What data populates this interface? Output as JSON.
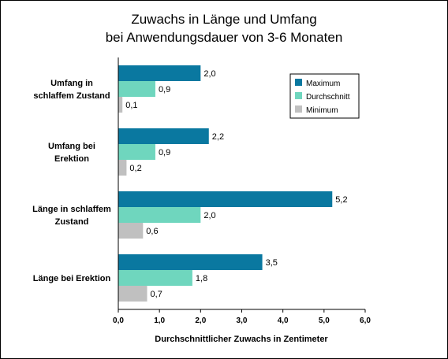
{
  "chart_data": {
    "type": "bar",
    "orientation": "horizontal",
    "title": [
      "Zuwachs in Länge und Umfang",
      "bei Anwendungsdauer von 3-6 Monaten"
    ],
    "xlabel": "Durchschnittlicher Zuwachs in Zentimeter",
    "ylabel": "",
    "xlim": [
      0,
      6
    ],
    "x_ticks": [
      "0,0",
      "1,0",
      "2,0",
      "3,0",
      "4,0",
      "5,0",
      "6,0"
    ],
    "grid": false,
    "legend_position": "top-right",
    "categories": [
      [
        "Umfang in",
        "schlaffem Zustand"
      ],
      [
        "Umfang bei",
        "Erektion"
      ],
      [
        "Länge in schlaffem",
        "Zustand"
      ],
      [
        "Länge bei Erektion"
      ]
    ],
    "series": [
      {
        "name": "Maximum",
        "color": "#0a78a0",
        "values": [
          2.0,
          2.2,
          5.2,
          3.5
        ],
        "labels": [
          "2,0",
          "2,2",
          "5,2",
          "3,5"
        ]
      },
      {
        "name": "Durchschnitt",
        "color": "#6fd6be",
        "values": [
          0.9,
          0.9,
          2.0,
          1.8
        ],
        "labels": [
          "0,9",
          "0,9",
          "2,0",
          "1,8"
        ]
      },
      {
        "name": "Minimum",
        "color": "#c0c0c0",
        "values": [
          0.1,
          0.2,
          0.6,
          0.7
        ],
        "labels": [
          "0,1",
          "0,2",
          "0,6",
          "0,7"
        ]
      }
    ]
  }
}
